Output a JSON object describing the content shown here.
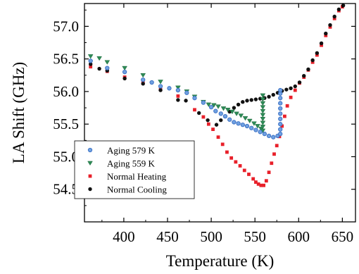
{
  "chart_data": {
    "type": "scatter",
    "title": "",
    "xlabel": "Temperature (K)",
    "ylabel": "LA Shift (GHz)",
    "xlim": [
      355,
      665
    ],
    "ylim": [
      54.0,
      57.35
    ],
    "xticks": [
      400,
      450,
      500,
      550,
      600,
      650
    ],
    "yticks": [
      54.5,
      55.0,
      55.5,
      56.0,
      56.5,
      57.0
    ],
    "xtick_labels": [
      "400",
      "450",
      "500",
      "550",
      "600",
      "650"
    ],
    "ytick_labels": [
      "54.5",
      "55.0",
      "55.5",
      "56.0",
      "56.5",
      "57.0"
    ],
    "grid": false,
    "legend_position": "bottom-left",
    "series": [
      {
        "name": "Aging 579 K",
        "marker": "circle",
        "color": "#3a6fc4",
        "points": [
          [
            362,
            56.47
          ],
          [
            381,
            56.36
          ],
          [
            401,
            56.3
          ],
          [
            422,
            56.18
          ],
          [
            432,
            56.14
          ],
          [
            442,
            56.08
          ],
          [
            452,
            56.05
          ],
          [
            462,
            56.02
          ],
          [
            472,
            55.98
          ],
          [
            481,
            55.9
          ],
          [
            491,
            55.83
          ],
          [
            500,
            55.76
          ],
          [
            505,
            55.7
          ],
          [
            511,
            55.66
          ],
          [
            516,
            55.62
          ],
          [
            521,
            55.57
          ],
          [
            526,
            55.53
          ],
          [
            531,
            55.51
          ],
          [
            536,
            55.49
          ],
          [
            541,
            55.47
          ],
          [
            546,
            55.44
          ],
          [
            551,
            55.41
          ],
          [
            556,
            55.38
          ],
          [
            561,
            55.35
          ],
          [
            566,
            55.32
          ],
          [
            571,
            55.3
          ],
          [
            576,
            55.32
          ],
          [
            579,
            55.35
          ],
          [
            579,
            55.42
          ],
          [
            579,
            55.5
          ],
          [
            579,
            55.58
          ],
          [
            579,
            55.66
          ],
          [
            579,
            55.74
          ],
          [
            579,
            55.82
          ],
          [
            579,
            55.9
          ],
          [
            579,
            55.97
          ],
          [
            579,
            56.02
          ]
        ]
      },
      {
        "name": "Aging 559 K",
        "marker": "triangle-down",
        "color": "#2e8b57",
        "points": [
          [
            362,
            56.54
          ],
          [
            372,
            56.51
          ],
          [
            381,
            56.45
          ],
          [
            401,
            56.36
          ],
          [
            422,
            56.25
          ],
          [
            442,
            56.15
          ],
          [
            462,
            56.06
          ],
          [
            472,
            56.0
          ],
          [
            481,
            55.92
          ],
          [
            491,
            55.84
          ],
          [
            497,
            55.8
          ],
          [
            503,
            55.79
          ],
          [
            508,
            55.77
          ],
          [
            514,
            55.74
          ],
          [
            519,
            55.72
          ],
          [
            524,
            55.69
          ],
          [
            529,
            55.66
          ],
          [
            534,
            55.63
          ],
          [
            539,
            55.59
          ],
          [
            544,
            55.55
          ],
          [
            549,
            55.51
          ],
          [
            553,
            55.47
          ],
          [
            557,
            55.43
          ],
          [
            559,
            55.4
          ],
          [
            559,
            55.46
          ],
          [
            559,
            55.52
          ],
          [
            559,
            55.58
          ],
          [
            559,
            55.64
          ],
          [
            559,
            55.7
          ],
          [
            559,
            55.76
          ],
          [
            559,
            55.82
          ],
          [
            559,
            55.88
          ],
          [
            559,
            55.94
          ]
        ]
      },
      {
        "name": "Normal Heating",
        "marker": "square",
        "color": "#e8202a",
        "points": [
          [
            362,
            56.38
          ],
          [
            381,
            56.31
          ],
          [
            401,
            56.22
          ],
          [
            422,
            56.13
          ],
          [
            442,
            56.03
          ],
          [
            462,
            55.93
          ],
          [
            481,
            55.72
          ],
          [
            491,
            55.61
          ],
          [
            497,
            55.5
          ],
          [
            502,
            55.42
          ],
          [
            508,
            55.3
          ],
          [
            513,
            55.19
          ],
          [
            518,
            55.07
          ],
          [
            523,
            54.98
          ],
          [
            528,
            54.92
          ],
          [
            533,
            54.86
          ],
          [
            538,
            54.79
          ],
          [
            543,
            54.73
          ],
          [
            548,
            54.66
          ],
          [
            551,
            54.61
          ],
          [
            554,
            54.58
          ],
          [
            557,
            54.56
          ],
          [
            560,
            54.56
          ],
          [
            563,
            54.63
          ],
          [
            566,
            54.76
          ],
          [
            569,
            54.9
          ],
          [
            572,
            55.04
          ],
          [
            575,
            55.17
          ],
          [
            578,
            55.31
          ],
          [
            581,
            55.47
          ],
          [
            584,
            55.62
          ],
          [
            587,
            55.78
          ],
          [
            591,
            55.91
          ],
          [
            596,
            56.02
          ],
          [
            601,
            56.13
          ],
          [
            606,
            56.22
          ],
          [
            611,
            56.33
          ],
          [
            616,
            56.45
          ],
          [
            621,
            56.56
          ],
          [
            626,
            56.71
          ],
          [
            631,
            56.86
          ],
          [
            636,
            56.99
          ],
          [
            641,
            57.12
          ],
          [
            646,
            57.24
          ],
          [
            650,
            57.3
          ]
        ]
      },
      {
        "name": "Normal Cooling",
        "marker": "circle",
        "color": "#111111",
        "points": [
          [
            651,
            57.32
          ],
          [
            646,
            57.26
          ],
          [
            641,
            57.15
          ],
          [
            636,
            57.02
          ],
          [
            631,
            56.89
          ],
          [
            626,
            56.74
          ],
          [
            621,
            56.59
          ],
          [
            616,
            56.48
          ],
          [
            611,
            56.34
          ],
          [
            606,
            56.24
          ],
          [
            601,
            56.14
          ],
          [
            596,
            56.08
          ],
          [
            591,
            56.05
          ],
          [
            586,
            56.03
          ],
          [
            581,
            56.01
          ],
          [
            576,
            55.98
          ],
          [
            571,
            55.95
          ],
          [
            566,
            55.92
          ],
          [
            561,
            55.9
          ],
          [
            556,
            55.89
          ],
          [
            551,
            55.88
          ],
          [
            546,
            55.87
          ],
          [
            541,
            55.86
          ],
          [
            536,
            55.84
          ],
          [
            531,
            55.8
          ],
          [
            526,
            55.75
          ],
          [
            521,
            55.69
          ],
          [
            516,
            55.62
          ],
          [
            511,
            55.56
          ],
          [
            506,
            55.49
          ],
          [
            496,
            55.56
          ],
          [
            486,
            55.67
          ],
          [
            471,
            55.86
          ],
          [
            462,
            55.87
          ],
          [
            442,
            56.02
          ],
          [
            422,
            56.12
          ],
          [
            401,
            56.2
          ],
          [
            381,
            56.32
          ],
          [
            372,
            56.35
          ],
          [
            362,
            56.42
          ]
        ]
      }
    ]
  }
}
